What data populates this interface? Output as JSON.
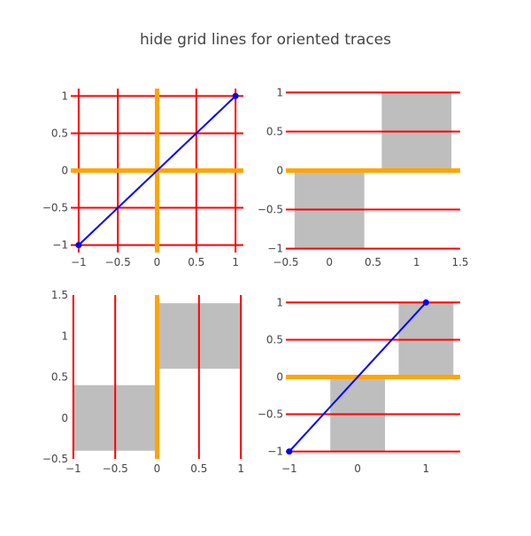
{
  "title": "hide grid lines for oriented traces",
  "colors": {
    "grid": "#ff0000",
    "zeroline": "#ffa500",
    "line": "#0000ff",
    "bar": "#bebebe",
    "text": "#444444"
  },
  "chart_data": [
    {
      "id": "top-left",
      "type": "line",
      "x": [
        -1,
        1
      ],
      "y": [
        -1,
        1
      ],
      "xlim": [
        -1.1,
        1.1
      ],
      "ylim": [
        -1.1,
        1.1
      ],
      "xticks": [
        -1,
        -0.5,
        0,
        0.5,
        1
      ],
      "xtick_labels": [
        "−1",
        "−0.5",
        "0",
        "0.5",
        "1"
      ],
      "yticks": [
        -1,
        -0.5,
        0,
        0.5,
        1
      ],
      "ytick_labels": [
        "−1",
        "−0.5",
        "0",
        "0.5",
        "1"
      ],
      "vertical_grid": true,
      "horizontal_grid": true,
      "x_zeroline": true,
      "y_zeroline": true,
      "line_series": [
        {
          "x": [
            -1,
            1
          ],
          "y": [
            -1,
            1
          ]
        }
      ],
      "bar_series": [],
      "hbar_series": []
    },
    {
      "id": "top-right",
      "type": "bar",
      "categories": [
        0,
        1
      ],
      "values": [
        -1,
        1
      ],
      "xlim": [
        -0.5,
        1.5
      ],
      "ylim": [
        -1.05,
        1.05
      ],
      "xticks": [
        -0.5,
        0,
        0.5,
        1,
        1.5
      ],
      "xtick_labels": [
        "−0.5",
        "0",
        "0.5",
        "1",
        "1.5"
      ],
      "yticks": [
        -1,
        -0.5,
        0,
        0.5,
        1
      ],
      "ytick_labels": [
        "−1",
        "−0.5",
        "0",
        "0.5",
        "1"
      ],
      "vertical_grid": false,
      "horizontal_grid": true,
      "x_zeroline": false,
      "y_zeroline": true,
      "line_series": [],
      "bar_series": [
        {
          "x": [
            0,
            1
          ],
          "y": [
            -1,
            1
          ],
          "width": 0.8
        }
      ],
      "hbar_series": []
    },
    {
      "id": "bottom-left",
      "type": "bar",
      "orientation": "h",
      "categories": [
        0,
        1
      ],
      "values": [
        -1,
        1
      ],
      "xlim": [
        -1.03,
        1.03
      ],
      "ylim": [
        -0.5,
        1.5
      ],
      "xticks": [
        -1,
        -0.5,
        0,
        0.5,
        1
      ],
      "xtick_labels": [
        "−1",
        "−0.5",
        "0",
        "0.5",
        "1"
      ],
      "yticks": [
        -0.5,
        0,
        0.5,
        1,
        1.5
      ],
      "ytick_labels": [
        "−0.5",
        "0",
        "0.5",
        "1",
        "1.5"
      ],
      "vertical_grid": true,
      "horizontal_grid": false,
      "x_zeroline": true,
      "y_zeroline": false,
      "line_series": [],
      "bar_series": [],
      "hbar_series": [
        {
          "y": [
            0,
            1
          ],
          "x": [
            -1,
            1
          ],
          "width": 0.8
        }
      ]
    },
    {
      "id": "bottom-right",
      "type": "bar",
      "x": [
        -1,
        1
      ],
      "y": [
        -1,
        1
      ],
      "xlim": [
        -1.05,
        1.5
      ],
      "ylim": [
        -1.1,
        1.1
      ],
      "xticks": [
        -1,
        0,
        1
      ],
      "xtick_labels": [
        "−1",
        "0",
        "1"
      ],
      "yticks": [
        -1,
        -0.5,
        0,
        0.5,
        1
      ],
      "ytick_labels": [
        "−1",
        "−0.5",
        "0",
        "0.5",
        "1"
      ],
      "vertical_grid": false,
      "horizontal_grid": true,
      "x_zeroline": false,
      "y_zeroline": true,
      "line_series": [
        {
          "x": [
            -1,
            1
          ],
          "y": [
            -1,
            1
          ]
        }
      ],
      "bar_series": [
        {
          "x": [
            0,
            1
          ],
          "y": [
            -1,
            1
          ],
          "width": 0.8
        }
      ],
      "hbar_series": []
    }
  ]
}
